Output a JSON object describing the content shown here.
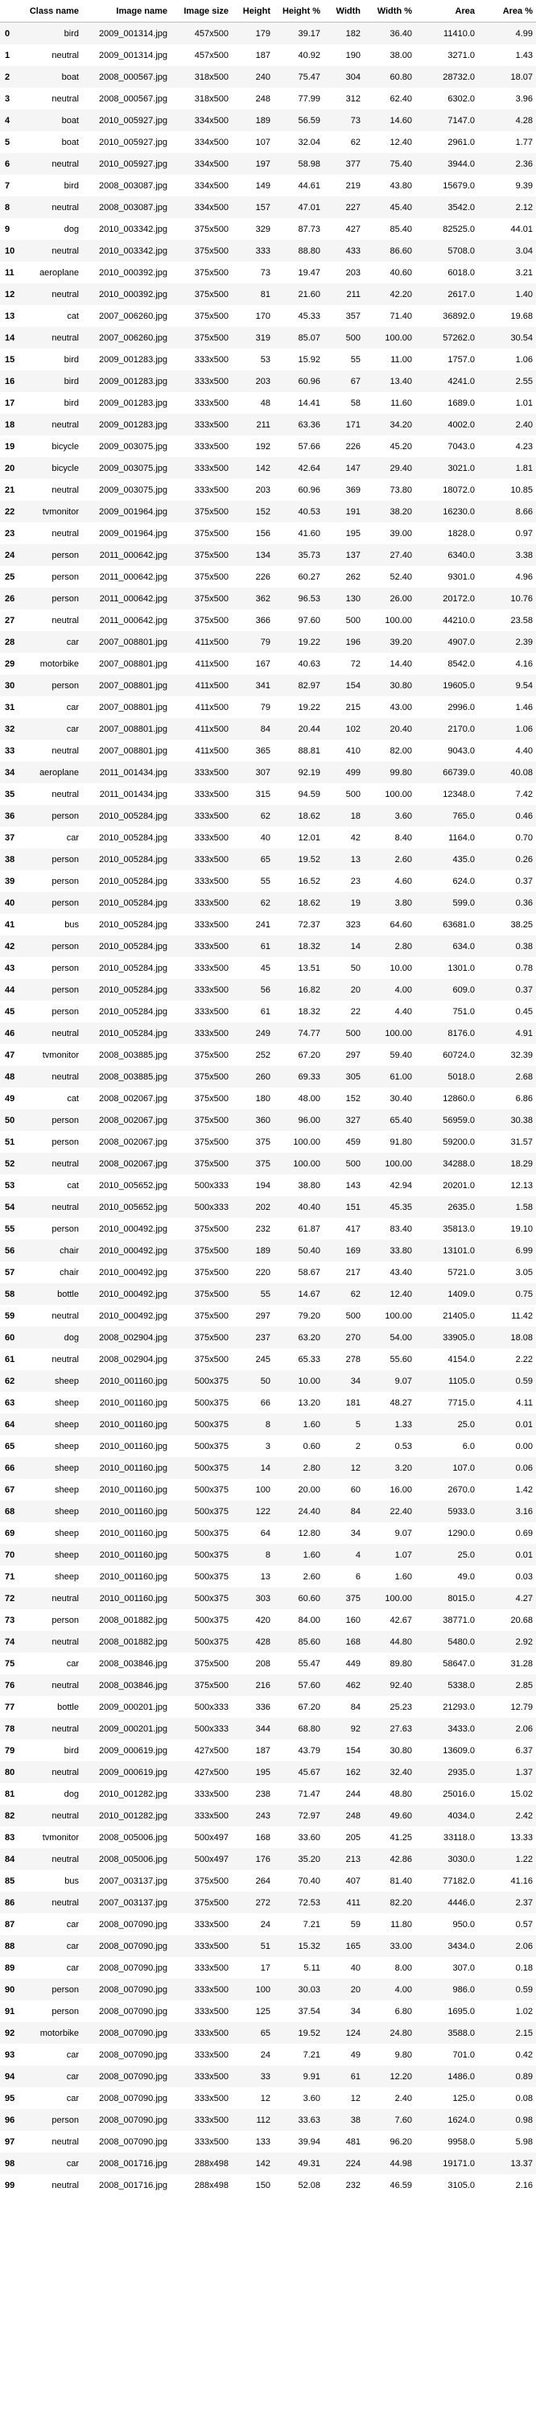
{
  "columns": [
    "",
    "Class name",
    "Image name",
    "Image size",
    "Height",
    "Height %",
    "Width",
    "Width %",
    "Area",
    "Area %"
  ],
  "rows": [
    [
      "0",
      "bird",
      "2009_001314.jpg",
      "457x500",
      "179",
      "39.17",
      "182",
      "36.40",
      "11410.0",
      "4.99"
    ],
    [
      "1",
      "neutral",
      "2009_001314.jpg",
      "457x500",
      "187",
      "40.92",
      "190",
      "38.00",
      "3271.0",
      "1.43"
    ],
    [
      "2",
      "boat",
      "2008_000567.jpg",
      "318x500",
      "240",
      "75.47",
      "304",
      "60.80",
      "28732.0",
      "18.07"
    ],
    [
      "3",
      "neutral",
      "2008_000567.jpg",
      "318x500",
      "248",
      "77.99",
      "312",
      "62.40",
      "6302.0",
      "3.96"
    ],
    [
      "4",
      "boat",
      "2010_005927.jpg",
      "334x500",
      "189",
      "56.59",
      "73",
      "14.60",
      "7147.0",
      "4.28"
    ],
    [
      "5",
      "boat",
      "2010_005927.jpg",
      "334x500",
      "107",
      "32.04",
      "62",
      "12.40",
      "2961.0",
      "1.77"
    ],
    [
      "6",
      "neutral",
      "2010_005927.jpg",
      "334x500",
      "197",
      "58.98",
      "377",
      "75.40",
      "3944.0",
      "2.36"
    ],
    [
      "7",
      "bird",
      "2008_003087.jpg",
      "334x500",
      "149",
      "44.61",
      "219",
      "43.80",
      "15679.0",
      "9.39"
    ],
    [
      "8",
      "neutral",
      "2008_003087.jpg",
      "334x500",
      "157",
      "47.01",
      "227",
      "45.40",
      "3542.0",
      "2.12"
    ],
    [
      "9",
      "dog",
      "2010_003342.jpg",
      "375x500",
      "329",
      "87.73",
      "427",
      "85.40",
      "82525.0",
      "44.01"
    ],
    [
      "10",
      "neutral",
      "2010_003342.jpg",
      "375x500",
      "333",
      "88.80",
      "433",
      "86.60",
      "5708.0",
      "3.04"
    ],
    [
      "11",
      "aeroplane",
      "2010_000392.jpg",
      "375x500",
      "73",
      "19.47",
      "203",
      "40.60",
      "6018.0",
      "3.21"
    ],
    [
      "12",
      "neutral",
      "2010_000392.jpg",
      "375x500",
      "81",
      "21.60",
      "211",
      "42.20",
      "2617.0",
      "1.40"
    ],
    [
      "13",
      "cat",
      "2007_006260.jpg",
      "375x500",
      "170",
      "45.33",
      "357",
      "71.40",
      "36892.0",
      "19.68"
    ],
    [
      "14",
      "neutral",
      "2007_006260.jpg",
      "375x500",
      "319",
      "85.07",
      "500",
      "100.00",
      "57262.0",
      "30.54"
    ],
    [
      "15",
      "bird",
      "2009_001283.jpg",
      "333x500",
      "53",
      "15.92",
      "55",
      "11.00",
      "1757.0",
      "1.06"
    ],
    [
      "16",
      "bird",
      "2009_001283.jpg",
      "333x500",
      "203",
      "60.96",
      "67",
      "13.40",
      "4241.0",
      "2.55"
    ],
    [
      "17",
      "bird",
      "2009_001283.jpg",
      "333x500",
      "48",
      "14.41",
      "58",
      "11.60",
      "1689.0",
      "1.01"
    ],
    [
      "18",
      "neutral",
      "2009_001283.jpg",
      "333x500",
      "211",
      "63.36",
      "171",
      "34.20",
      "4002.0",
      "2.40"
    ],
    [
      "19",
      "bicycle",
      "2009_003075.jpg",
      "333x500",
      "192",
      "57.66",
      "226",
      "45.20",
      "7043.0",
      "4.23"
    ],
    [
      "20",
      "bicycle",
      "2009_003075.jpg",
      "333x500",
      "142",
      "42.64",
      "147",
      "29.40",
      "3021.0",
      "1.81"
    ],
    [
      "21",
      "neutral",
      "2009_003075.jpg",
      "333x500",
      "203",
      "60.96",
      "369",
      "73.80",
      "18072.0",
      "10.85"
    ],
    [
      "22",
      "tvmonitor",
      "2009_001964.jpg",
      "375x500",
      "152",
      "40.53",
      "191",
      "38.20",
      "16230.0",
      "8.66"
    ],
    [
      "23",
      "neutral",
      "2009_001964.jpg",
      "375x500",
      "156",
      "41.60",
      "195",
      "39.00",
      "1828.0",
      "0.97"
    ],
    [
      "24",
      "person",
      "2011_000642.jpg",
      "375x500",
      "134",
      "35.73",
      "137",
      "27.40",
      "6340.0",
      "3.38"
    ],
    [
      "25",
      "person",
      "2011_000642.jpg",
      "375x500",
      "226",
      "60.27",
      "262",
      "52.40",
      "9301.0",
      "4.96"
    ],
    [
      "26",
      "person",
      "2011_000642.jpg",
      "375x500",
      "362",
      "96.53",
      "130",
      "26.00",
      "20172.0",
      "10.76"
    ],
    [
      "27",
      "neutral",
      "2011_000642.jpg",
      "375x500",
      "366",
      "97.60",
      "500",
      "100.00",
      "44210.0",
      "23.58"
    ],
    [
      "28",
      "car",
      "2007_008801.jpg",
      "411x500",
      "79",
      "19.22",
      "196",
      "39.20",
      "4907.0",
      "2.39"
    ],
    [
      "29",
      "motorbike",
      "2007_008801.jpg",
      "411x500",
      "167",
      "40.63",
      "72",
      "14.40",
      "8542.0",
      "4.16"
    ],
    [
      "30",
      "person",
      "2007_008801.jpg",
      "411x500",
      "341",
      "82.97",
      "154",
      "30.80",
      "19605.0",
      "9.54"
    ],
    [
      "31",
      "car",
      "2007_008801.jpg",
      "411x500",
      "79",
      "19.22",
      "215",
      "43.00",
      "2996.0",
      "1.46"
    ],
    [
      "32",
      "car",
      "2007_008801.jpg",
      "411x500",
      "84",
      "20.44",
      "102",
      "20.40",
      "2170.0",
      "1.06"
    ],
    [
      "33",
      "neutral",
      "2007_008801.jpg",
      "411x500",
      "365",
      "88.81",
      "410",
      "82.00",
      "9043.0",
      "4.40"
    ],
    [
      "34",
      "aeroplane",
      "2011_001434.jpg",
      "333x500",
      "307",
      "92.19",
      "499",
      "99.80",
      "66739.0",
      "40.08"
    ],
    [
      "35",
      "neutral",
      "2011_001434.jpg",
      "333x500",
      "315",
      "94.59",
      "500",
      "100.00",
      "12348.0",
      "7.42"
    ],
    [
      "36",
      "person",
      "2010_005284.jpg",
      "333x500",
      "62",
      "18.62",
      "18",
      "3.60",
      "765.0",
      "0.46"
    ],
    [
      "37",
      "car",
      "2010_005284.jpg",
      "333x500",
      "40",
      "12.01",
      "42",
      "8.40",
      "1164.0",
      "0.70"
    ],
    [
      "38",
      "person",
      "2010_005284.jpg",
      "333x500",
      "65",
      "19.52",
      "13",
      "2.60",
      "435.0",
      "0.26"
    ],
    [
      "39",
      "person",
      "2010_005284.jpg",
      "333x500",
      "55",
      "16.52",
      "23",
      "4.60",
      "624.0",
      "0.37"
    ],
    [
      "40",
      "person",
      "2010_005284.jpg",
      "333x500",
      "62",
      "18.62",
      "19",
      "3.80",
      "599.0",
      "0.36"
    ],
    [
      "41",
      "bus",
      "2010_005284.jpg",
      "333x500",
      "241",
      "72.37",
      "323",
      "64.60",
      "63681.0",
      "38.25"
    ],
    [
      "42",
      "person",
      "2010_005284.jpg",
      "333x500",
      "61",
      "18.32",
      "14",
      "2.80",
      "634.0",
      "0.38"
    ],
    [
      "43",
      "person",
      "2010_005284.jpg",
      "333x500",
      "45",
      "13.51",
      "50",
      "10.00",
      "1301.0",
      "0.78"
    ],
    [
      "44",
      "person",
      "2010_005284.jpg",
      "333x500",
      "56",
      "16.82",
      "20",
      "4.00",
      "609.0",
      "0.37"
    ],
    [
      "45",
      "person",
      "2010_005284.jpg",
      "333x500",
      "61",
      "18.32",
      "22",
      "4.40",
      "751.0",
      "0.45"
    ],
    [
      "46",
      "neutral",
      "2010_005284.jpg",
      "333x500",
      "249",
      "74.77",
      "500",
      "100.00",
      "8176.0",
      "4.91"
    ],
    [
      "47",
      "tvmonitor",
      "2008_003885.jpg",
      "375x500",
      "252",
      "67.20",
      "297",
      "59.40",
      "60724.0",
      "32.39"
    ],
    [
      "48",
      "neutral",
      "2008_003885.jpg",
      "375x500",
      "260",
      "69.33",
      "305",
      "61.00",
      "5018.0",
      "2.68"
    ],
    [
      "49",
      "cat",
      "2008_002067.jpg",
      "375x500",
      "180",
      "48.00",
      "152",
      "30.40",
      "12860.0",
      "6.86"
    ],
    [
      "50",
      "person",
      "2008_002067.jpg",
      "375x500",
      "360",
      "96.00",
      "327",
      "65.40",
      "56959.0",
      "30.38"
    ],
    [
      "51",
      "person",
      "2008_002067.jpg",
      "375x500",
      "375",
      "100.00",
      "459",
      "91.80",
      "59200.0",
      "31.57"
    ],
    [
      "52",
      "neutral",
      "2008_002067.jpg",
      "375x500",
      "375",
      "100.00",
      "500",
      "100.00",
      "34288.0",
      "18.29"
    ],
    [
      "53",
      "cat",
      "2010_005652.jpg",
      "500x333",
      "194",
      "38.80",
      "143",
      "42.94",
      "20201.0",
      "12.13"
    ],
    [
      "54",
      "neutral",
      "2010_005652.jpg",
      "500x333",
      "202",
      "40.40",
      "151",
      "45.35",
      "2635.0",
      "1.58"
    ],
    [
      "55",
      "person",
      "2010_000492.jpg",
      "375x500",
      "232",
      "61.87",
      "417",
      "83.40",
      "35813.0",
      "19.10"
    ],
    [
      "56",
      "chair",
      "2010_000492.jpg",
      "375x500",
      "189",
      "50.40",
      "169",
      "33.80",
      "13101.0",
      "6.99"
    ],
    [
      "57",
      "chair",
      "2010_000492.jpg",
      "375x500",
      "220",
      "58.67",
      "217",
      "43.40",
      "5721.0",
      "3.05"
    ],
    [
      "58",
      "bottle",
      "2010_000492.jpg",
      "375x500",
      "55",
      "14.67",
      "62",
      "12.40",
      "1409.0",
      "0.75"
    ],
    [
      "59",
      "neutral",
      "2010_000492.jpg",
      "375x500",
      "297",
      "79.20",
      "500",
      "100.00",
      "21405.0",
      "11.42"
    ],
    [
      "60",
      "dog",
      "2008_002904.jpg",
      "375x500",
      "237",
      "63.20",
      "270",
      "54.00",
      "33905.0",
      "18.08"
    ],
    [
      "61",
      "neutral",
      "2008_002904.jpg",
      "375x500",
      "245",
      "65.33",
      "278",
      "55.60",
      "4154.0",
      "2.22"
    ],
    [
      "62",
      "sheep",
      "2010_001160.jpg",
      "500x375",
      "50",
      "10.00",
      "34",
      "9.07",
      "1105.0",
      "0.59"
    ],
    [
      "63",
      "sheep",
      "2010_001160.jpg",
      "500x375",
      "66",
      "13.20",
      "181",
      "48.27",
      "7715.0",
      "4.11"
    ],
    [
      "64",
      "sheep",
      "2010_001160.jpg",
      "500x375",
      "8",
      "1.60",
      "5",
      "1.33",
      "25.0",
      "0.01"
    ],
    [
      "65",
      "sheep",
      "2010_001160.jpg",
      "500x375",
      "3",
      "0.60",
      "2",
      "0.53",
      "6.0",
      "0.00"
    ],
    [
      "66",
      "sheep",
      "2010_001160.jpg",
      "500x375",
      "14",
      "2.80",
      "12",
      "3.20",
      "107.0",
      "0.06"
    ],
    [
      "67",
      "sheep",
      "2010_001160.jpg",
      "500x375",
      "100",
      "20.00",
      "60",
      "16.00",
      "2670.0",
      "1.42"
    ],
    [
      "68",
      "sheep",
      "2010_001160.jpg",
      "500x375",
      "122",
      "24.40",
      "84",
      "22.40",
      "5933.0",
      "3.16"
    ],
    [
      "69",
      "sheep",
      "2010_001160.jpg",
      "500x375",
      "64",
      "12.80",
      "34",
      "9.07",
      "1290.0",
      "0.69"
    ],
    [
      "70",
      "sheep",
      "2010_001160.jpg",
      "500x375",
      "8",
      "1.60",
      "4",
      "1.07",
      "25.0",
      "0.01"
    ],
    [
      "71",
      "sheep",
      "2010_001160.jpg",
      "500x375",
      "13",
      "2.60",
      "6",
      "1.60",
      "49.0",
      "0.03"
    ],
    [
      "72",
      "neutral",
      "2010_001160.jpg",
      "500x375",
      "303",
      "60.60",
      "375",
      "100.00",
      "8015.0",
      "4.27"
    ],
    [
      "73",
      "person",
      "2008_001882.jpg",
      "500x375",
      "420",
      "84.00",
      "160",
      "42.67",
      "38771.0",
      "20.68"
    ],
    [
      "74",
      "neutral",
      "2008_001882.jpg",
      "500x375",
      "428",
      "85.60",
      "168",
      "44.80",
      "5480.0",
      "2.92"
    ],
    [
      "75",
      "car",
      "2008_003846.jpg",
      "375x500",
      "208",
      "55.47",
      "449",
      "89.80",
      "58647.0",
      "31.28"
    ],
    [
      "76",
      "neutral",
      "2008_003846.jpg",
      "375x500",
      "216",
      "57.60",
      "462",
      "92.40",
      "5338.0",
      "2.85"
    ],
    [
      "77",
      "bottle",
      "2009_000201.jpg",
      "500x333",
      "336",
      "67.20",
      "84",
      "25.23",
      "21293.0",
      "12.79"
    ],
    [
      "78",
      "neutral",
      "2009_000201.jpg",
      "500x333",
      "344",
      "68.80",
      "92",
      "27.63",
      "3433.0",
      "2.06"
    ],
    [
      "79",
      "bird",
      "2009_000619.jpg",
      "427x500",
      "187",
      "43.79",
      "154",
      "30.80",
      "13609.0",
      "6.37"
    ],
    [
      "80",
      "neutral",
      "2009_000619.jpg",
      "427x500",
      "195",
      "45.67",
      "162",
      "32.40",
      "2935.0",
      "1.37"
    ],
    [
      "81",
      "dog",
      "2010_001282.jpg",
      "333x500",
      "238",
      "71.47",
      "244",
      "48.80",
      "25016.0",
      "15.02"
    ],
    [
      "82",
      "neutral",
      "2010_001282.jpg",
      "333x500",
      "243",
      "72.97",
      "248",
      "49.60",
      "4034.0",
      "2.42"
    ],
    [
      "83",
      "tvmonitor",
      "2008_005006.jpg",
      "500x497",
      "168",
      "33.60",
      "205",
      "41.25",
      "33118.0",
      "13.33"
    ],
    [
      "84",
      "neutral",
      "2008_005006.jpg",
      "500x497",
      "176",
      "35.20",
      "213",
      "42.86",
      "3030.0",
      "1.22"
    ],
    [
      "85",
      "bus",
      "2007_003137.jpg",
      "375x500",
      "264",
      "70.40",
      "407",
      "81.40",
      "77182.0",
      "41.16"
    ],
    [
      "86",
      "neutral",
      "2007_003137.jpg",
      "375x500",
      "272",
      "72.53",
      "411",
      "82.20",
      "4446.0",
      "2.37"
    ],
    [
      "87",
      "car",
      "2008_007090.jpg",
      "333x500",
      "24",
      "7.21",
      "59",
      "11.80",
      "950.0",
      "0.57"
    ],
    [
      "88",
      "car",
      "2008_007090.jpg",
      "333x500",
      "51",
      "15.32",
      "165",
      "33.00",
      "3434.0",
      "2.06"
    ],
    [
      "89",
      "car",
      "2008_007090.jpg",
      "333x500",
      "17",
      "5.11",
      "40",
      "8.00",
      "307.0",
      "0.18"
    ],
    [
      "90",
      "person",
      "2008_007090.jpg",
      "333x500",
      "100",
      "30.03",
      "20",
      "4.00",
      "986.0",
      "0.59"
    ],
    [
      "91",
      "person",
      "2008_007090.jpg",
      "333x500",
      "125",
      "37.54",
      "34",
      "6.80",
      "1695.0",
      "1.02"
    ],
    [
      "92",
      "motorbike",
      "2008_007090.jpg",
      "333x500",
      "65",
      "19.52",
      "124",
      "24.80",
      "3588.0",
      "2.15"
    ],
    [
      "93",
      "car",
      "2008_007090.jpg",
      "333x500",
      "24",
      "7.21",
      "49",
      "9.80",
      "701.0",
      "0.42"
    ],
    [
      "94",
      "car",
      "2008_007090.jpg",
      "333x500",
      "33",
      "9.91",
      "61",
      "12.20",
      "1486.0",
      "0.89"
    ],
    [
      "95",
      "car",
      "2008_007090.jpg",
      "333x500",
      "12",
      "3.60",
      "12",
      "2.40",
      "125.0",
      "0.08"
    ],
    [
      "96",
      "person",
      "2008_007090.jpg",
      "333x500",
      "112",
      "33.63",
      "38",
      "7.60",
      "1624.0",
      "0.98"
    ],
    [
      "97",
      "neutral",
      "2008_007090.jpg",
      "333x500",
      "133",
      "39.94",
      "481",
      "96.20",
      "9958.0",
      "5.98"
    ],
    [
      "98",
      "car",
      "2008_001716.jpg",
      "288x498",
      "142",
      "49.31",
      "224",
      "44.98",
      "19171.0",
      "13.37"
    ],
    [
      "99",
      "neutral",
      "2008_001716.jpg",
      "288x498",
      "150",
      "52.08",
      "232",
      "46.59",
      "3105.0",
      "2.16"
    ]
  ]
}
